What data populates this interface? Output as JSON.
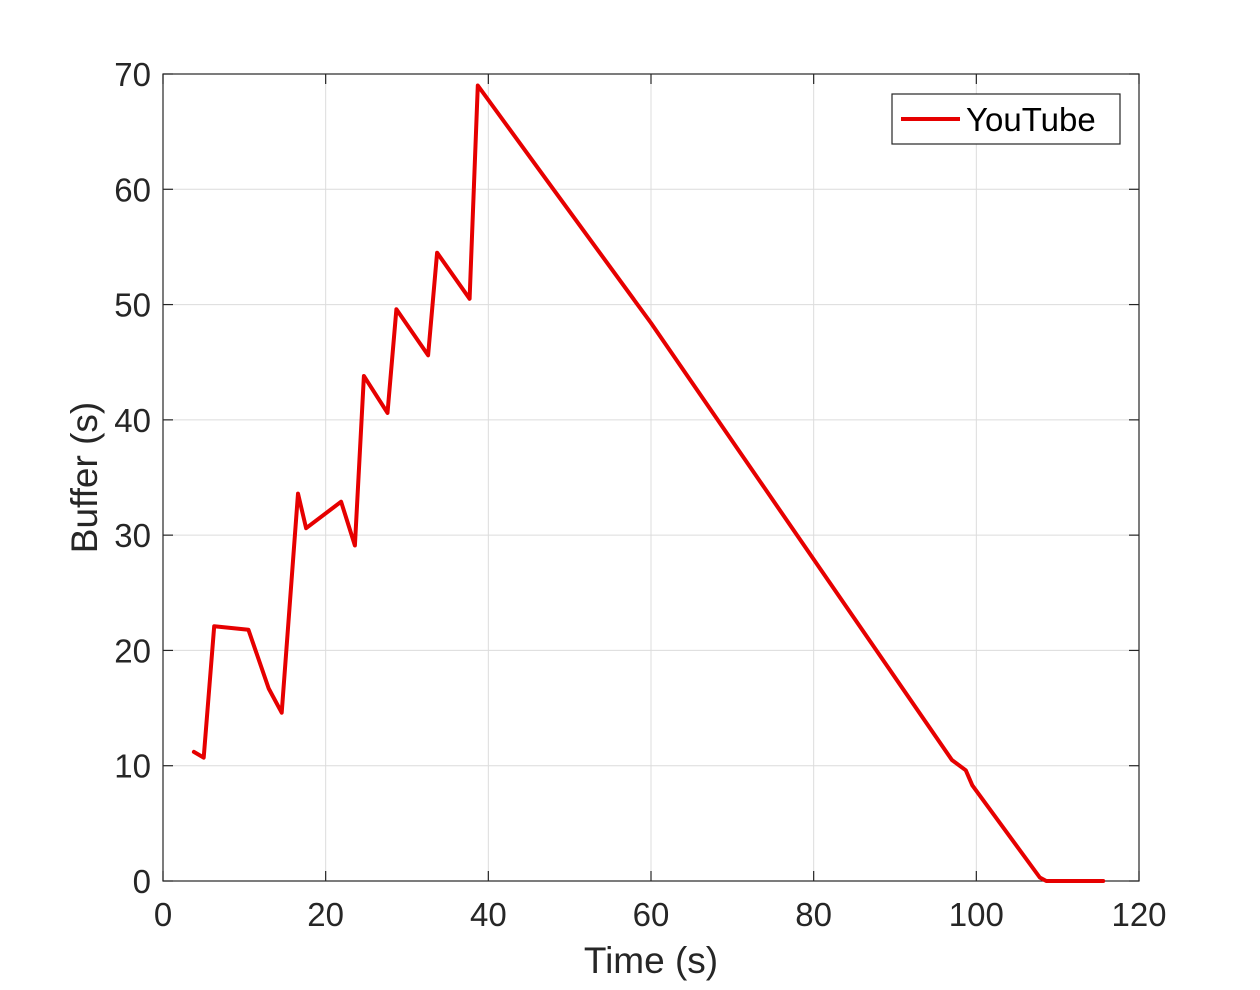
{
  "chart_data": {
    "type": "line",
    "xlabel": "Time (s)",
    "ylabel": "Buffer (s)",
    "xlim": [
      0,
      120
    ],
    "ylim": [
      0,
      70
    ],
    "xticks": [
      0,
      20,
      40,
      60,
      80,
      100,
      120
    ],
    "yticks": [
      0,
      10,
      20,
      30,
      40,
      50,
      60,
      70
    ],
    "xtick_labels": [
      "0",
      "20",
      "40",
      "60",
      "80",
      "100",
      "120"
    ],
    "ytick_labels": [
      "0",
      "10",
      "20",
      "30",
      "40",
      "50",
      "60",
      "70"
    ],
    "grid": true,
    "legend_position": "top-right",
    "series": [
      {
        "name": "YouTube",
        "color": "#e60000",
        "x": [
          3.8,
          5.0,
          6.3,
          10.5,
          13.0,
          14.6,
          16.6,
          17.6,
          21.9,
          23.6,
          24.7,
          27.6,
          28.7,
          32.6,
          33.7,
          37.7,
          38.7,
          48.0,
          60.0,
          80.0,
          97.0,
          98.7,
          99.5,
          107.8,
          108.6,
          115.6
        ],
        "y": [
          11.2,
          10.7,
          22.1,
          21.8,
          16.7,
          14.6,
          33.6,
          30.6,
          32.9,
          29.1,
          43.8,
          40.6,
          49.6,
          45.6,
          54.5,
          50.5,
          69.0,
          60.0,
          48.4,
          27.9,
          10.5,
          9.6,
          8.3,
          0.3,
          0.0,
          0.0
        ]
      }
    ]
  }
}
